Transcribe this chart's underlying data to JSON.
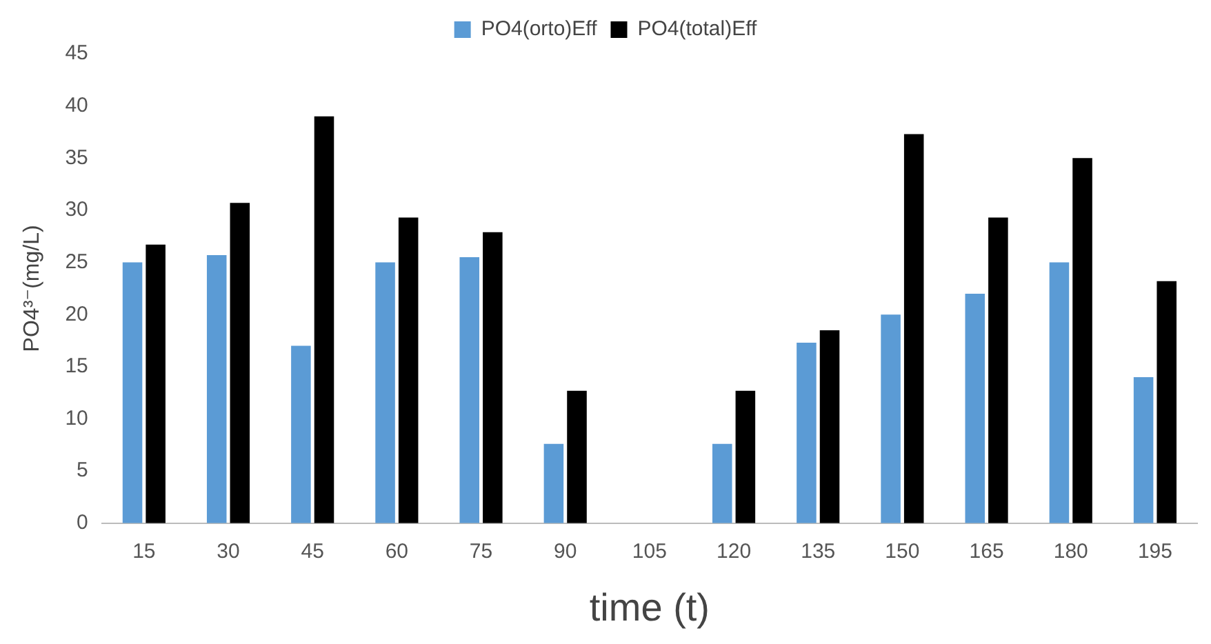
{
  "chart_data": {
    "type": "bar",
    "xlabel": "time (t)",
    "ylabel": "PO4³⁻(mg/L)",
    "categories": [
      "15",
      "30",
      "45",
      "60",
      "75",
      "90",
      "105",
      "120",
      "135",
      "150",
      "165",
      "180",
      "195"
    ],
    "series": [
      {
        "name": "PO4(orto)Eff",
        "color": "#5b9bd5",
        "values": [
          25,
          25.7,
          17,
          25,
          25.5,
          7.6,
          0,
          7.6,
          17.3,
          20,
          22,
          25,
          14
        ]
      },
      {
        "name": "PO4(total)Eff",
        "color": "#000000",
        "values": [
          26.7,
          30.7,
          39,
          29.3,
          27.9,
          12.7,
          0,
          12.7,
          18.5,
          37.3,
          29.3,
          35,
          23.2
        ]
      }
    ],
    "ylim": [
      0,
      45
    ],
    "yticks": [
      0,
      5,
      10,
      15,
      20,
      25,
      30,
      35,
      40,
      45
    ],
    "grid": false,
    "legend": "top"
  }
}
